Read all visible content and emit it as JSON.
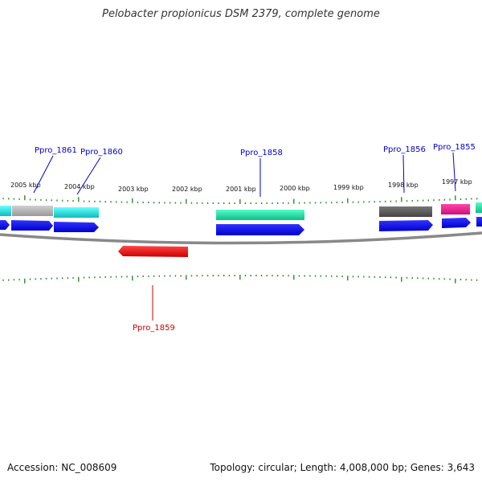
{
  "title": "Pelobacter propionicus DSM 2379, complete genome",
  "footer": {
    "accession": "Accession: NC_008609",
    "summary": "Topology: circular; Length: 4,008,000 bp; Genes: 3,643"
  },
  "scale_labels": [
    "2005 kbp",
    "2004 kbp",
    "2003 kbp",
    "2002 kbp",
    "2001 kbp",
    "2000 kbp",
    "1999 kbp",
    "1998 kbp",
    "1997 kbp"
  ],
  "gene_labels": [
    {
      "text": "Ppro_1861",
      "color": "#0000cc"
    },
    {
      "text": "Ppro_1860",
      "color": "#0000cc"
    },
    {
      "text": "Ppro_1858",
      "color": "#0000cc"
    },
    {
      "text": "Ppro_1856",
      "color": "#0000cc"
    },
    {
      "text": "Ppro_1855",
      "color": "#0000cc"
    },
    {
      "text": "Ppro_1859",
      "color": "#cc0000"
    }
  ],
  "colors": {
    "cds_forward": "#0000ee",
    "cds_reverse": "#ee0000",
    "tick": "#2a8a2a",
    "backbone": "#888888",
    "cyan": "#22dddd",
    "teal": "#22ddaa",
    "gray": "#aaaaaa",
    "darkgray": "#555555",
    "magenta": "#ee1188"
  }
}
